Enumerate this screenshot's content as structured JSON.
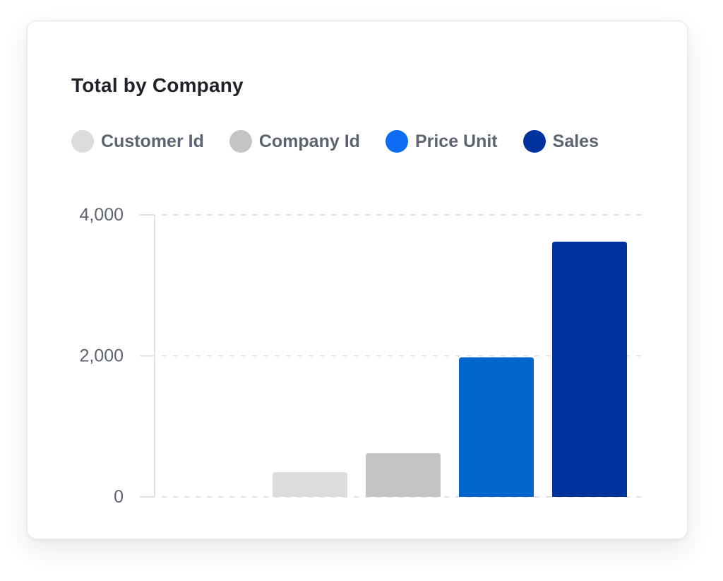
{
  "card": {
    "title": "Total by Company"
  },
  "legend": [
    {
      "label": "Customer Id",
      "color": "#dcdcdc"
    },
    {
      "label": "Company Id",
      "color": "#c4c4c4"
    },
    {
      "label": "Price Unit",
      "color": "#0c6cf2"
    },
    {
      "label": "Sales",
      "color": "#00319c"
    }
  ],
  "chart_data": {
    "type": "bar",
    "title": "Total by Company",
    "xlabel": "",
    "ylabel": "",
    "ylim": [
      0,
      4000
    ],
    "yticks": [
      0,
      2000,
      4000
    ],
    "ytick_labels": [
      "0",
      "2,000",
      "4,000"
    ],
    "grid": true,
    "legend_position": "top",
    "series": [
      {
        "name": "Customer Id",
        "values": [
          350
        ],
        "color": "#dcdcdc"
      },
      {
        "name": "Company Id",
        "values": [
          620
        ],
        "color": "#c4c4c4"
      },
      {
        "name": "Price Unit",
        "values": [
          1980
        ],
        "color": "#0066cc"
      },
      {
        "name": "Sales",
        "values": [
          3620
        ],
        "color": "#00319c"
      }
    ]
  }
}
